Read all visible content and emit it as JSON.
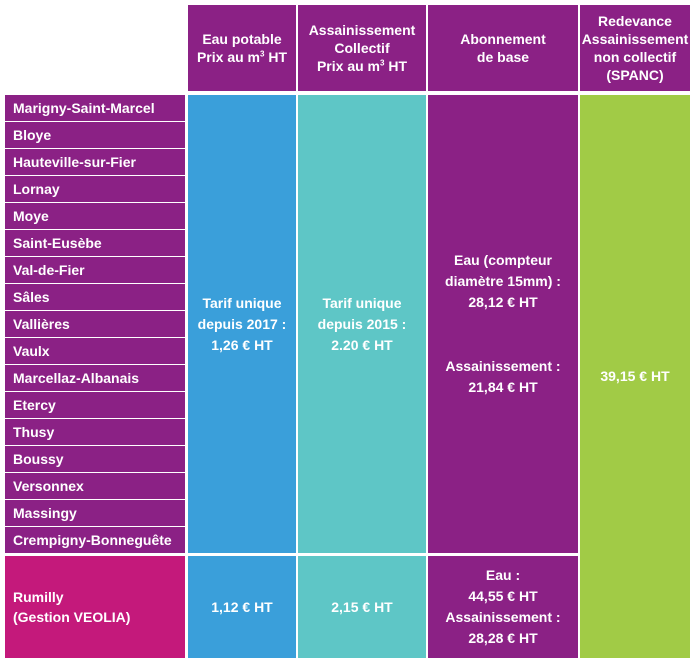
{
  "headers": {
    "eau_potable": {
      "line1": "Eau potable",
      "line2_pre": "Prix au m",
      "line2_sup": "3",
      "line2_post": " HT"
    },
    "assainissement": {
      "line1": "Assainissement",
      "line2": "Collectif",
      "line3_pre": "Prix au m",
      "line3_sup": "3",
      "line3_post": " HT"
    },
    "abonnement": {
      "line1": "Abonnement",
      "line2": "de base"
    },
    "redevance": {
      "line1": "Redevance",
      "line2": "Assainissement",
      "line3": "non collectif",
      "line4": "(SPANC)"
    }
  },
  "towns": [
    "Marigny-Saint-Marcel",
    "Bloye",
    "Hauteville-sur-Fier",
    "Lornay",
    "Moye",
    "Saint-Eusèbe",
    "Val-de-Fier",
    "Sâles",
    "Vallières",
    "Vaulx",
    "Marcellaz-Albanais",
    "Etercy",
    "Thusy",
    "Boussy",
    "Versonnex",
    "Massingy",
    "Crempigny-Bonneguête"
  ],
  "group_values": {
    "eau_potable": [
      "Tarif unique",
      "depuis 2017 :",
      "1,26 € HT"
    ],
    "assainissement": [
      "Tarif unique",
      "depuis 2015 :",
      "2.20 € HT"
    ],
    "abonnement_eau": [
      "Eau (compteur",
      "diamètre 15mm) :",
      "28,12 € HT"
    ],
    "abonnement_assain": [
      "Assainissement :",
      "21,84 € HT"
    ],
    "redevance": "39,15 € HT"
  },
  "rumilly": {
    "name_line1": "Rumilly",
    "name_line2": "(Gestion VEOLIA)",
    "eau_potable": "1,12 € HT",
    "assainissement": "2,15 € HT",
    "abonnement": [
      "Eau :",
      "44,55 € HT",
      "Assainissement :",
      "28,28 € HT"
    ]
  }
}
